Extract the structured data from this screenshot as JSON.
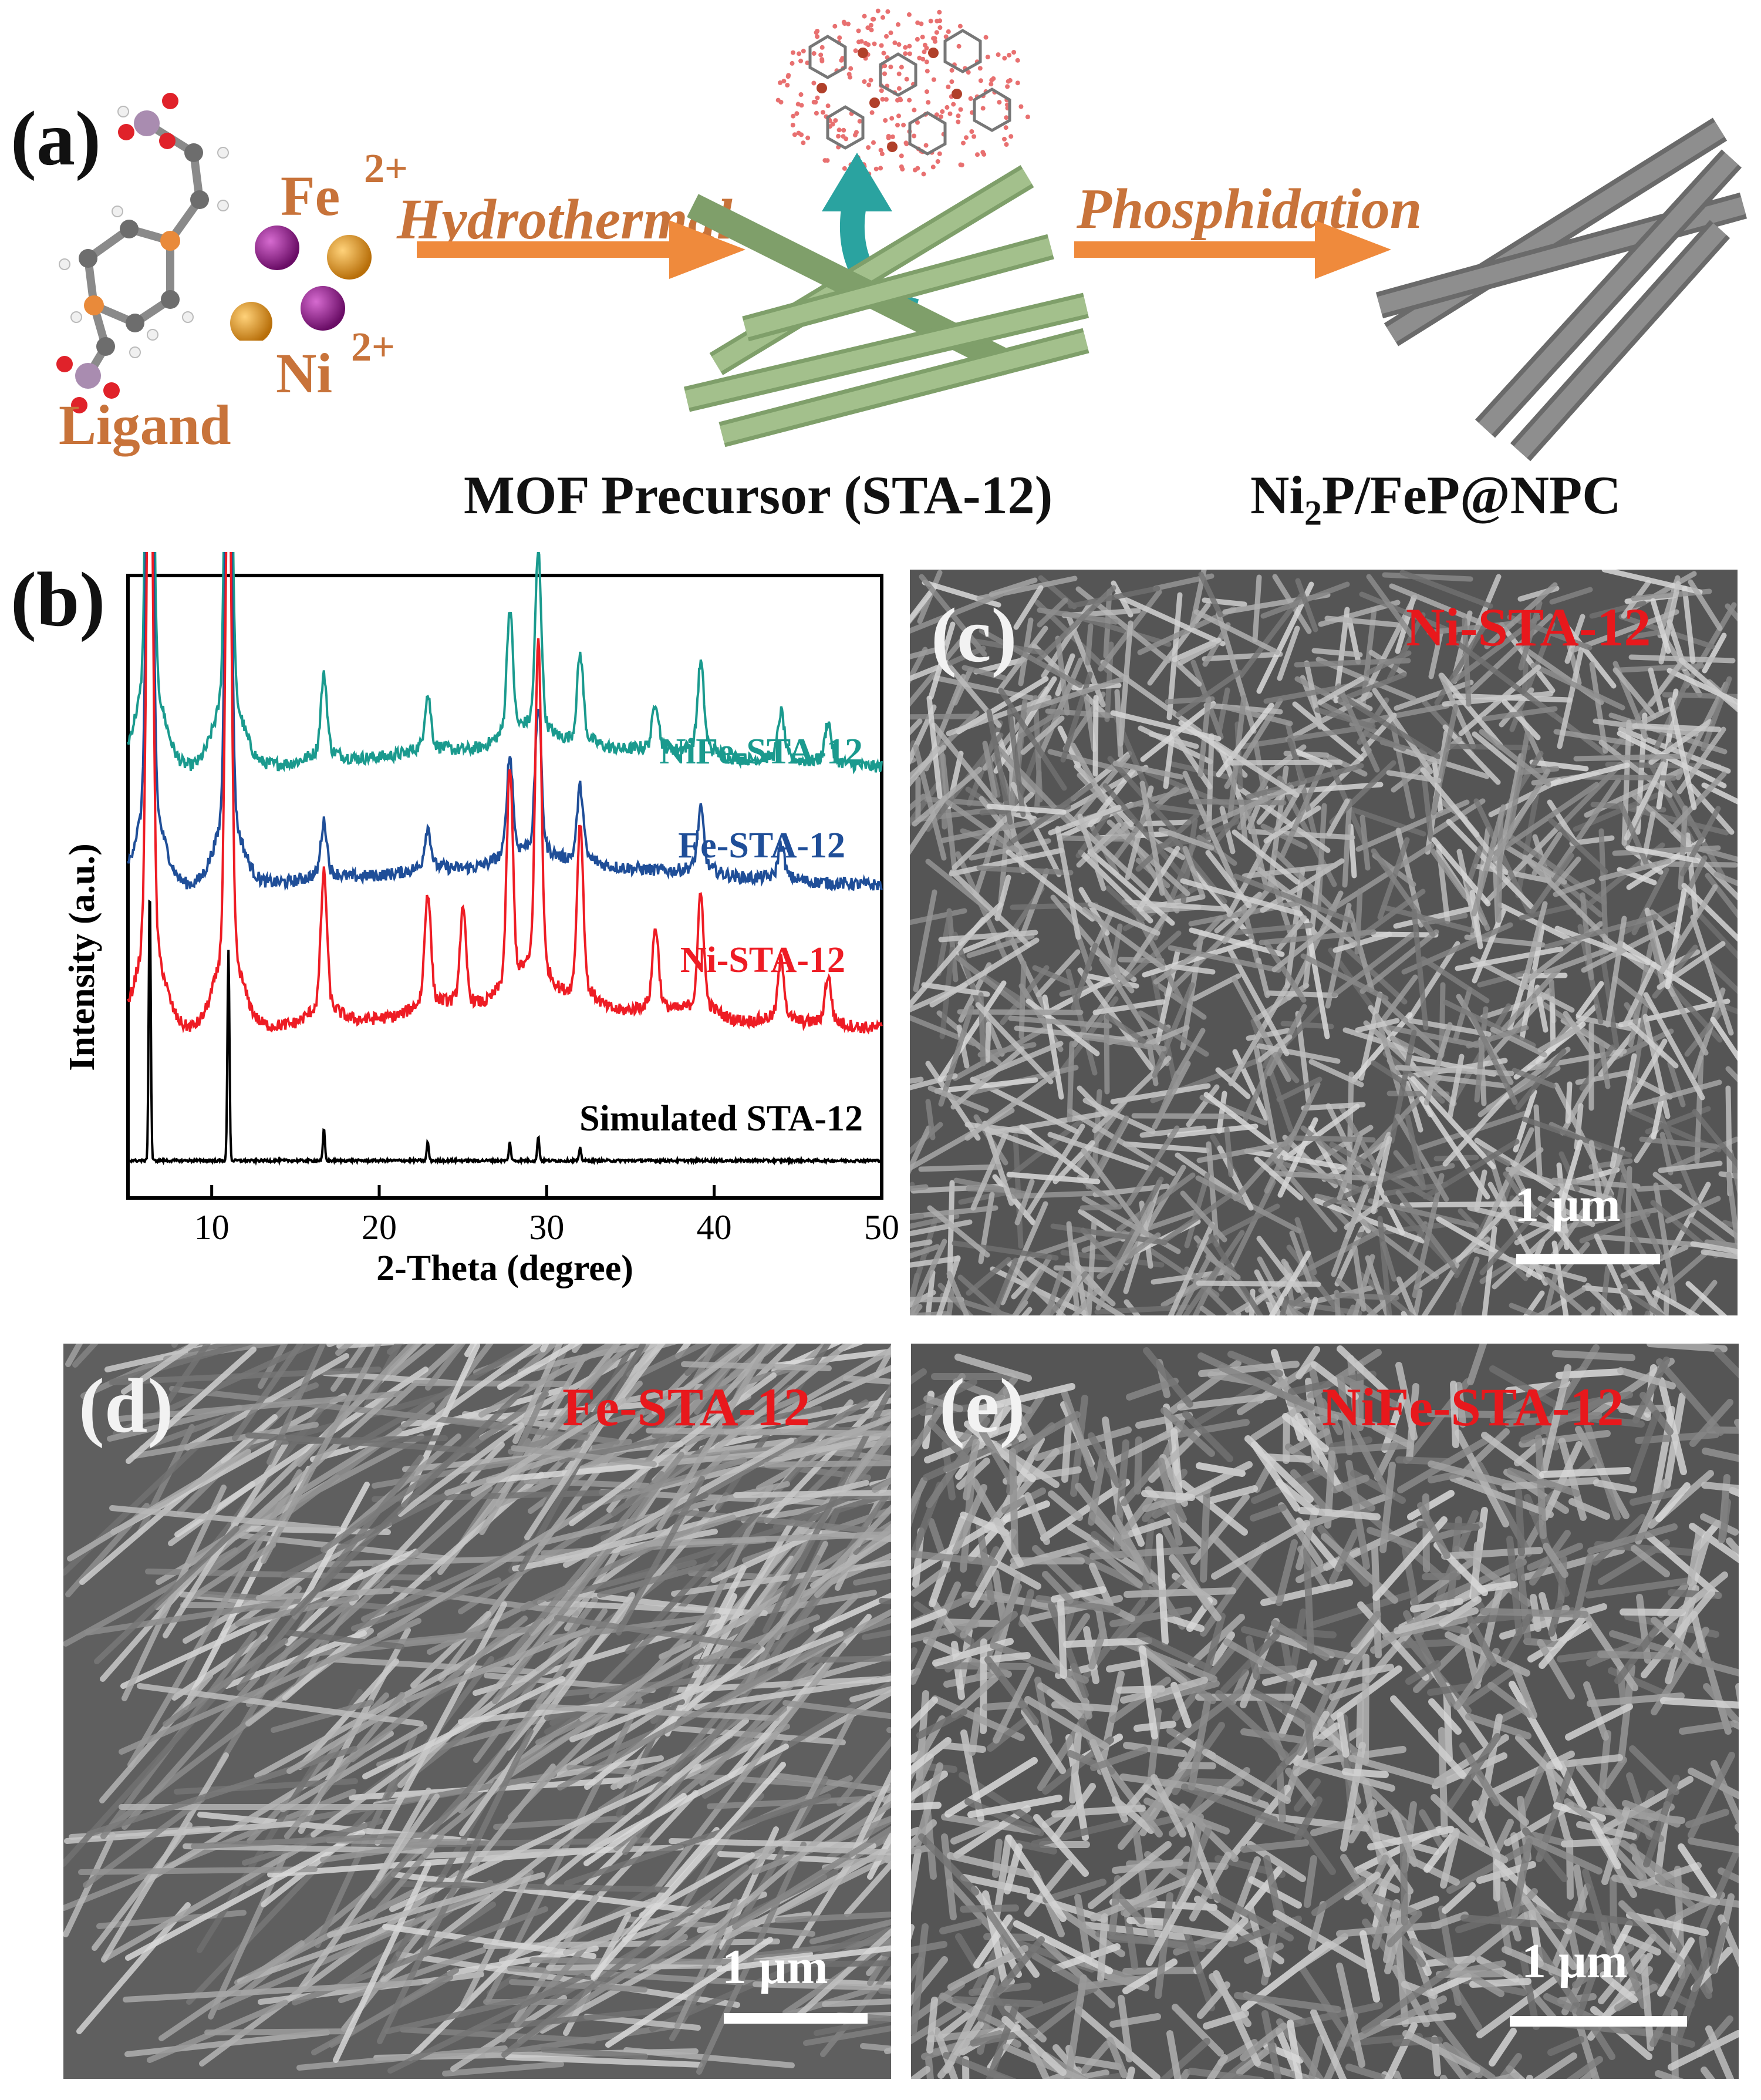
{
  "panel_a": {
    "letter": "(a)",
    "fe_label": "Fe",
    "fe_charge": "2+",
    "ni_label": "Ni",
    "ni_charge": "2+",
    "ligand_label": "Ligand",
    "step1_label": "Hydrothermal",
    "step2_label": "Phosphidation",
    "mof_caption": "MOF Precursor (STA-12)",
    "product_caption_prefix": "Ni",
    "product_caption_sub": "2",
    "product_caption_suffix": "P/FeP@NPC",
    "colors": {
      "arrow": "#ef8a3c",
      "rod_green": "#8fb07a",
      "rod_gray": "#7d7d7d",
      "curved_arrow": "#2aa3a0",
      "fe_ball": "#8b1b86",
      "ni_ball": "#e39c20"
    }
  },
  "panel_b": {
    "letter": "(b)",
    "xlabel": "2-Theta (degree)",
    "ylabel": "Intensity (a.u.)",
    "xticks": [
      "10",
      "20",
      "30",
      "40",
      "50"
    ]
  },
  "chart_data": {
    "type": "line",
    "title": "",
    "xlabel": "2-Theta (degree)",
    "ylabel": "Intensity (a.u.)",
    "xlim": [
      5,
      50
    ],
    "xticks": [
      10,
      20,
      30,
      40,
      50
    ],
    "grid": false,
    "y_ticks_shown": false,
    "peaks_2theta": [
      6.3,
      11.0,
      16.7,
      22.9,
      25.0,
      27.8,
      29.5,
      32.0,
      36.5,
      39.2,
      44.0,
      46.8
    ],
    "series": [
      {
        "name": "NiFe-STA-12",
        "color": "#1a9a8e",
        "baseline": 0.69,
        "peaks": [
          [
            6.3,
            1.0
          ],
          [
            11.0,
            0.82
          ],
          [
            16.7,
            0.12
          ],
          [
            22.9,
            0.08
          ],
          [
            27.8,
            0.19
          ],
          [
            29.5,
            0.27
          ],
          [
            32.0,
            0.13
          ],
          [
            36.5,
            0.07
          ],
          [
            39.2,
            0.13
          ],
          [
            44.0,
            0.07
          ],
          [
            46.8,
            0.06
          ]
        ]
      },
      {
        "name": "Fe-STA-12",
        "color": "#1f4e98",
        "baseline": 0.5,
        "peaks": [
          [
            6.3,
            0.9
          ],
          [
            11.0,
            0.74
          ],
          [
            16.7,
            0.08
          ],
          [
            22.9,
            0.06
          ],
          [
            27.8,
            0.15
          ],
          [
            29.5,
            0.22
          ],
          [
            32.0,
            0.11
          ],
          [
            39.2,
            0.09
          ],
          [
            44.0,
            0.05
          ]
        ]
      },
      {
        "name": "Ni-STA-12",
        "color": "#ee1c24",
        "baseline": 0.27,
        "peaks": [
          [
            6.3,
            1.0
          ],
          [
            11.0,
            0.86
          ],
          [
            16.7,
            0.21
          ],
          [
            22.9,
            0.17
          ],
          [
            25.0,
            0.14
          ],
          [
            27.8,
            0.33
          ],
          [
            29.5,
            0.51
          ],
          [
            32.0,
            0.26
          ],
          [
            36.5,
            0.12
          ],
          [
            39.2,
            0.17
          ],
          [
            44.0,
            0.09
          ],
          [
            46.8,
            0.07
          ]
        ]
      },
      {
        "name": "Simulated STA-12",
        "color": "#000000",
        "baseline": 0.06,
        "peaks": [
          [
            6.3,
            0.44
          ],
          [
            11.0,
            0.34
          ],
          [
            16.7,
            0.05
          ],
          [
            22.9,
            0.03
          ],
          [
            27.8,
            0.03
          ],
          [
            29.5,
            0.04
          ],
          [
            32.0,
            0.02
          ]
        ]
      }
    ]
  },
  "panel_c": {
    "letter": "(c)",
    "label": "Ni-STA-12",
    "scale": "1 μm"
  },
  "panel_d": {
    "letter": "(d)",
    "label": "Fe-STA-12",
    "scale": "1 μm"
  },
  "panel_e": {
    "letter": "(e)",
    "label": "NiFe-STA-12",
    "scale": "1 μm"
  }
}
